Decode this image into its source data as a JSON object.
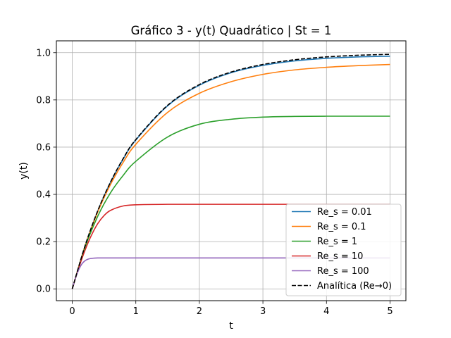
{
  "chart_data": {
    "type": "line",
    "title": "Gráfico 3 - y(t) Quadrático | St = 1",
    "xlabel": "t",
    "ylabel": "y(t)",
    "xlim": [
      -0.25,
      5.25
    ],
    "ylim": [
      -0.05,
      1.05
    ],
    "xticks": [
      0,
      1,
      2,
      3,
      4,
      5
    ],
    "yticks": [
      0.0,
      0.2,
      0.4,
      0.6,
      0.8,
      1.0
    ],
    "xtick_labels": [
      "0",
      "1",
      "2",
      "3",
      "4",
      "5"
    ],
    "ytick_labels": [
      "0.0",
      "0.2",
      "0.4",
      "0.6",
      "0.8",
      "1.0"
    ],
    "grid": true,
    "legend_position": "lower-right",
    "series": [
      {
        "name": "Re_s = 0.01",
        "color": "#1f77b4",
        "dash": "solid",
        "x": [
          0,
          0.2,
          0.4,
          0.6,
          0.8,
          1.0,
          1.5,
          2.0,
          2.5,
          3.0,
          3.5,
          4.0,
          4.5,
          5.0
        ],
        "values": [
          0.0,
          0.181,
          0.329,
          0.45,
          0.549,
          0.63,
          0.775,
          0.862,
          0.915,
          0.946,
          0.965,
          0.976,
          0.982,
          0.985
        ]
      },
      {
        "name": "Re_s = 0.1",
        "color": "#ff7f0e",
        "dash": "solid",
        "x": [
          0,
          0.2,
          0.4,
          0.6,
          0.8,
          1.0,
          1.5,
          2.0,
          2.5,
          3.0,
          3.5,
          4.0,
          4.5,
          5.0
        ],
        "values": [
          0.0,
          0.18,
          0.325,
          0.441,
          0.535,
          0.612,
          0.747,
          0.828,
          0.877,
          0.908,
          0.927,
          0.938,
          0.945,
          0.95
        ]
      },
      {
        "name": "Re_s = 1",
        "color": "#2ca02c",
        "dash": "solid",
        "x": [
          0,
          0.2,
          0.4,
          0.6,
          0.8,
          1.0,
          1.5,
          2.0,
          2.5,
          3.0,
          3.5,
          4.0,
          4.5,
          5.0
        ],
        "values": [
          0.0,
          0.175,
          0.307,
          0.406,
          0.48,
          0.54,
          0.643,
          0.697,
          0.718,
          0.727,
          0.73,
          0.731,
          0.731,
          0.731
        ]
      },
      {
        "name": "Re_s = 10",
        "color": "#d62728",
        "dash": "solid",
        "x": [
          0,
          0.1,
          0.2,
          0.3,
          0.4,
          0.5,
          0.6,
          0.8,
          1.0,
          1.5,
          2.0,
          3.0,
          4.0,
          5.0
        ],
        "values": [
          0.0,
          0.087,
          0.163,
          0.226,
          0.276,
          0.31,
          0.332,
          0.351,
          0.356,
          0.358,
          0.358,
          0.358,
          0.358,
          0.358
        ]
      },
      {
        "name": "Re_s = 100",
        "color": "#9467bd",
        "dash": "solid",
        "x": [
          0,
          0.05,
          0.1,
          0.15,
          0.2,
          0.25,
          0.3,
          0.4,
          0.5,
          1.0,
          2.0,
          3.0,
          4.0,
          5.0
        ],
        "values": [
          0.0,
          0.045,
          0.08,
          0.105,
          0.119,
          0.126,
          0.129,
          0.131,
          0.131,
          0.131,
          0.131,
          0.131,
          0.131,
          0.131
        ]
      },
      {
        "name": "Analítica (Re→0)",
        "color": "#000000",
        "dash": "dashed",
        "x": [
          0,
          0.2,
          0.4,
          0.6,
          0.8,
          1.0,
          1.5,
          2.0,
          2.5,
          3.0,
          3.5,
          4.0,
          4.5,
          5.0
        ],
        "values": [
          0.0,
          0.181,
          0.33,
          0.451,
          0.551,
          0.632,
          0.777,
          0.865,
          0.918,
          0.95,
          0.97,
          0.982,
          0.989,
          0.993
        ]
      }
    ]
  }
}
